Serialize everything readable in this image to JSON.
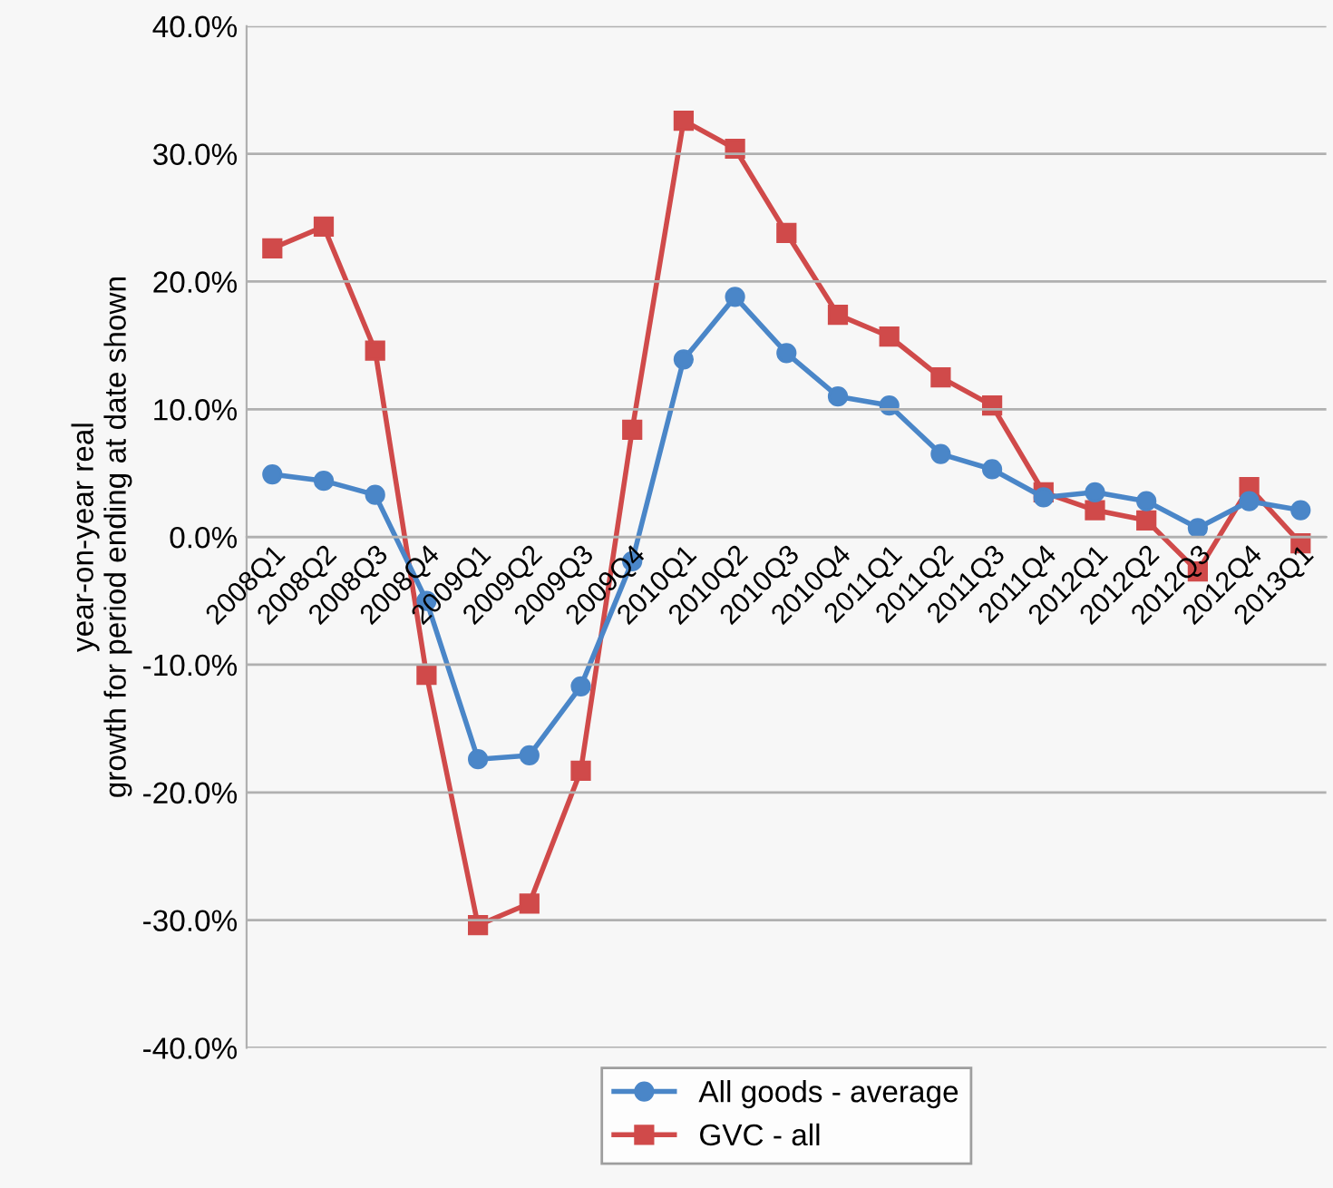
{
  "chart_data": {
    "type": "line",
    "ylabel": "year-on-year real\ngrowth for period ending at date shown",
    "categories": [
      "2008Q1",
      "2008Q2",
      "2008Q3",
      "2008Q4",
      "2009Q1",
      "2009Q2",
      "2009Q3",
      "2009Q4",
      "2010Q1",
      "2010Q2",
      "2010Q3",
      "2010Q4",
      "2011Q1",
      "2011Q2",
      "2011Q3",
      "2011Q4",
      "2012Q1",
      "2012Q2",
      "2012Q3",
      "2012Q4",
      "2013Q1"
    ],
    "series": [
      {
        "name": "All goods - average",
        "color": "#4a86c8",
        "marker": "circle",
        "values": [
          4.9,
          4.4,
          3.3,
          -5.0,
          -17.4,
          -17.1,
          -11.7,
          -1.9,
          13.9,
          18.8,
          14.4,
          11.0,
          10.3,
          6.5,
          5.3,
          3.1,
          3.5,
          2.8,
          0.7,
          2.8,
          2.1
        ]
      },
      {
        "name": "GVC - all",
        "color": "#d04a4a",
        "marker": "square",
        "values": [
          22.6,
          24.3,
          14.6,
          -10.8,
          -30.4,
          -28.7,
          -18.3,
          8.4,
          32.6,
          30.4,
          23.8,
          17.4,
          15.7,
          12.5,
          10.3,
          3.5,
          2.1,
          1.3,
          -2.7,
          3.9,
          -0.5
        ]
      }
    ],
    "ylim": [
      -40,
      40
    ],
    "yticks": [
      {
        "value": -40,
        "label": "-40.0%"
      },
      {
        "value": -30,
        "label": "-30.0%"
      },
      {
        "value": -20,
        "label": "-20.0%"
      },
      {
        "value": -10,
        "label": "-10.0%"
      },
      {
        "value": 0,
        "label": "0.0%"
      },
      {
        "value": 10,
        "label": "10.0%"
      },
      {
        "value": 20,
        "label": "20.0%"
      },
      {
        "value": 30,
        "label": "30.0%"
      },
      {
        "value": 40,
        "label": "40.0%"
      }
    ],
    "grid": "y",
    "legend": "bottom",
    "line_style": "solid"
  }
}
